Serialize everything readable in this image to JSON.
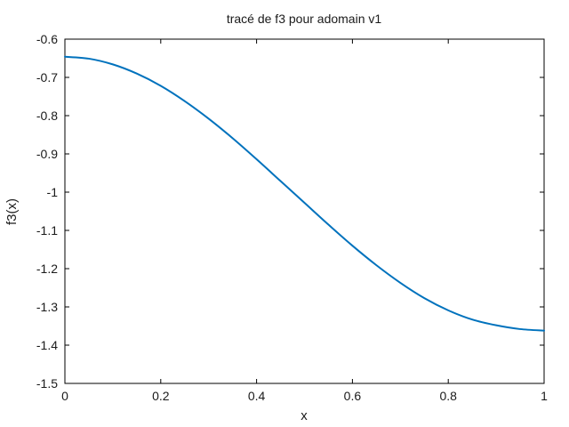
{
  "chart_data": {
    "type": "line",
    "title": "tracé de f3 pour adomain v1",
    "xlabel": "x",
    "ylabel": "f3(x)",
    "xlim": [
      0,
      1
    ],
    "ylim": [
      -1.5,
      -0.6
    ],
    "x_ticks": [
      0,
      0.2,
      0.4,
      0.6,
      0.8,
      1
    ],
    "x_tick_labels": [
      "0",
      "0.2",
      "0.4",
      "0.6",
      "0.8",
      "1"
    ],
    "y_ticks": [
      -0.6,
      -0.7,
      -0.8,
      -0.9,
      -1,
      -1.1,
      -1.2,
      -1.3,
      -1.4,
      -1.5
    ],
    "y_tick_labels": [
      "-0.6",
      "-0.7",
      "-0.8",
      "-0.9",
      "-1",
      "-1.1",
      "-1.2",
      "-1.3",
      "-1.4",
      "-1.5"
    ],
    "grid": false,
    "legend": "none",
    "series": [
      {
        "color": "#0072bd",
        "x": [
          0,
          0.05,
          0.1,
          0.15,
          0.2,
          0.25,
          0.3,
          0.35,
          0.4,
          0.45,
          0.5,
          0.55,
          0.6,
          0.65,
          0.7,
          0.75,
          0.8,
          0.85,
          0.9,
          0.95,
          1
        ],
        "y": [
          -0.646,
          -0.651,
          -0.666,
          -0.69,
          -0.722,
          -0.762,
          -0.808,
          -0.859,
          -0.914,
          -0.971,
          -1.028,
          -1.085,
          -1.14,
          -1.191,
          -1.237,
          -1.277,
          -1.309,
          -1.333,
          -1.348,
          -1.358,
          -1.362
        ]
      }
    ]
  }
}
